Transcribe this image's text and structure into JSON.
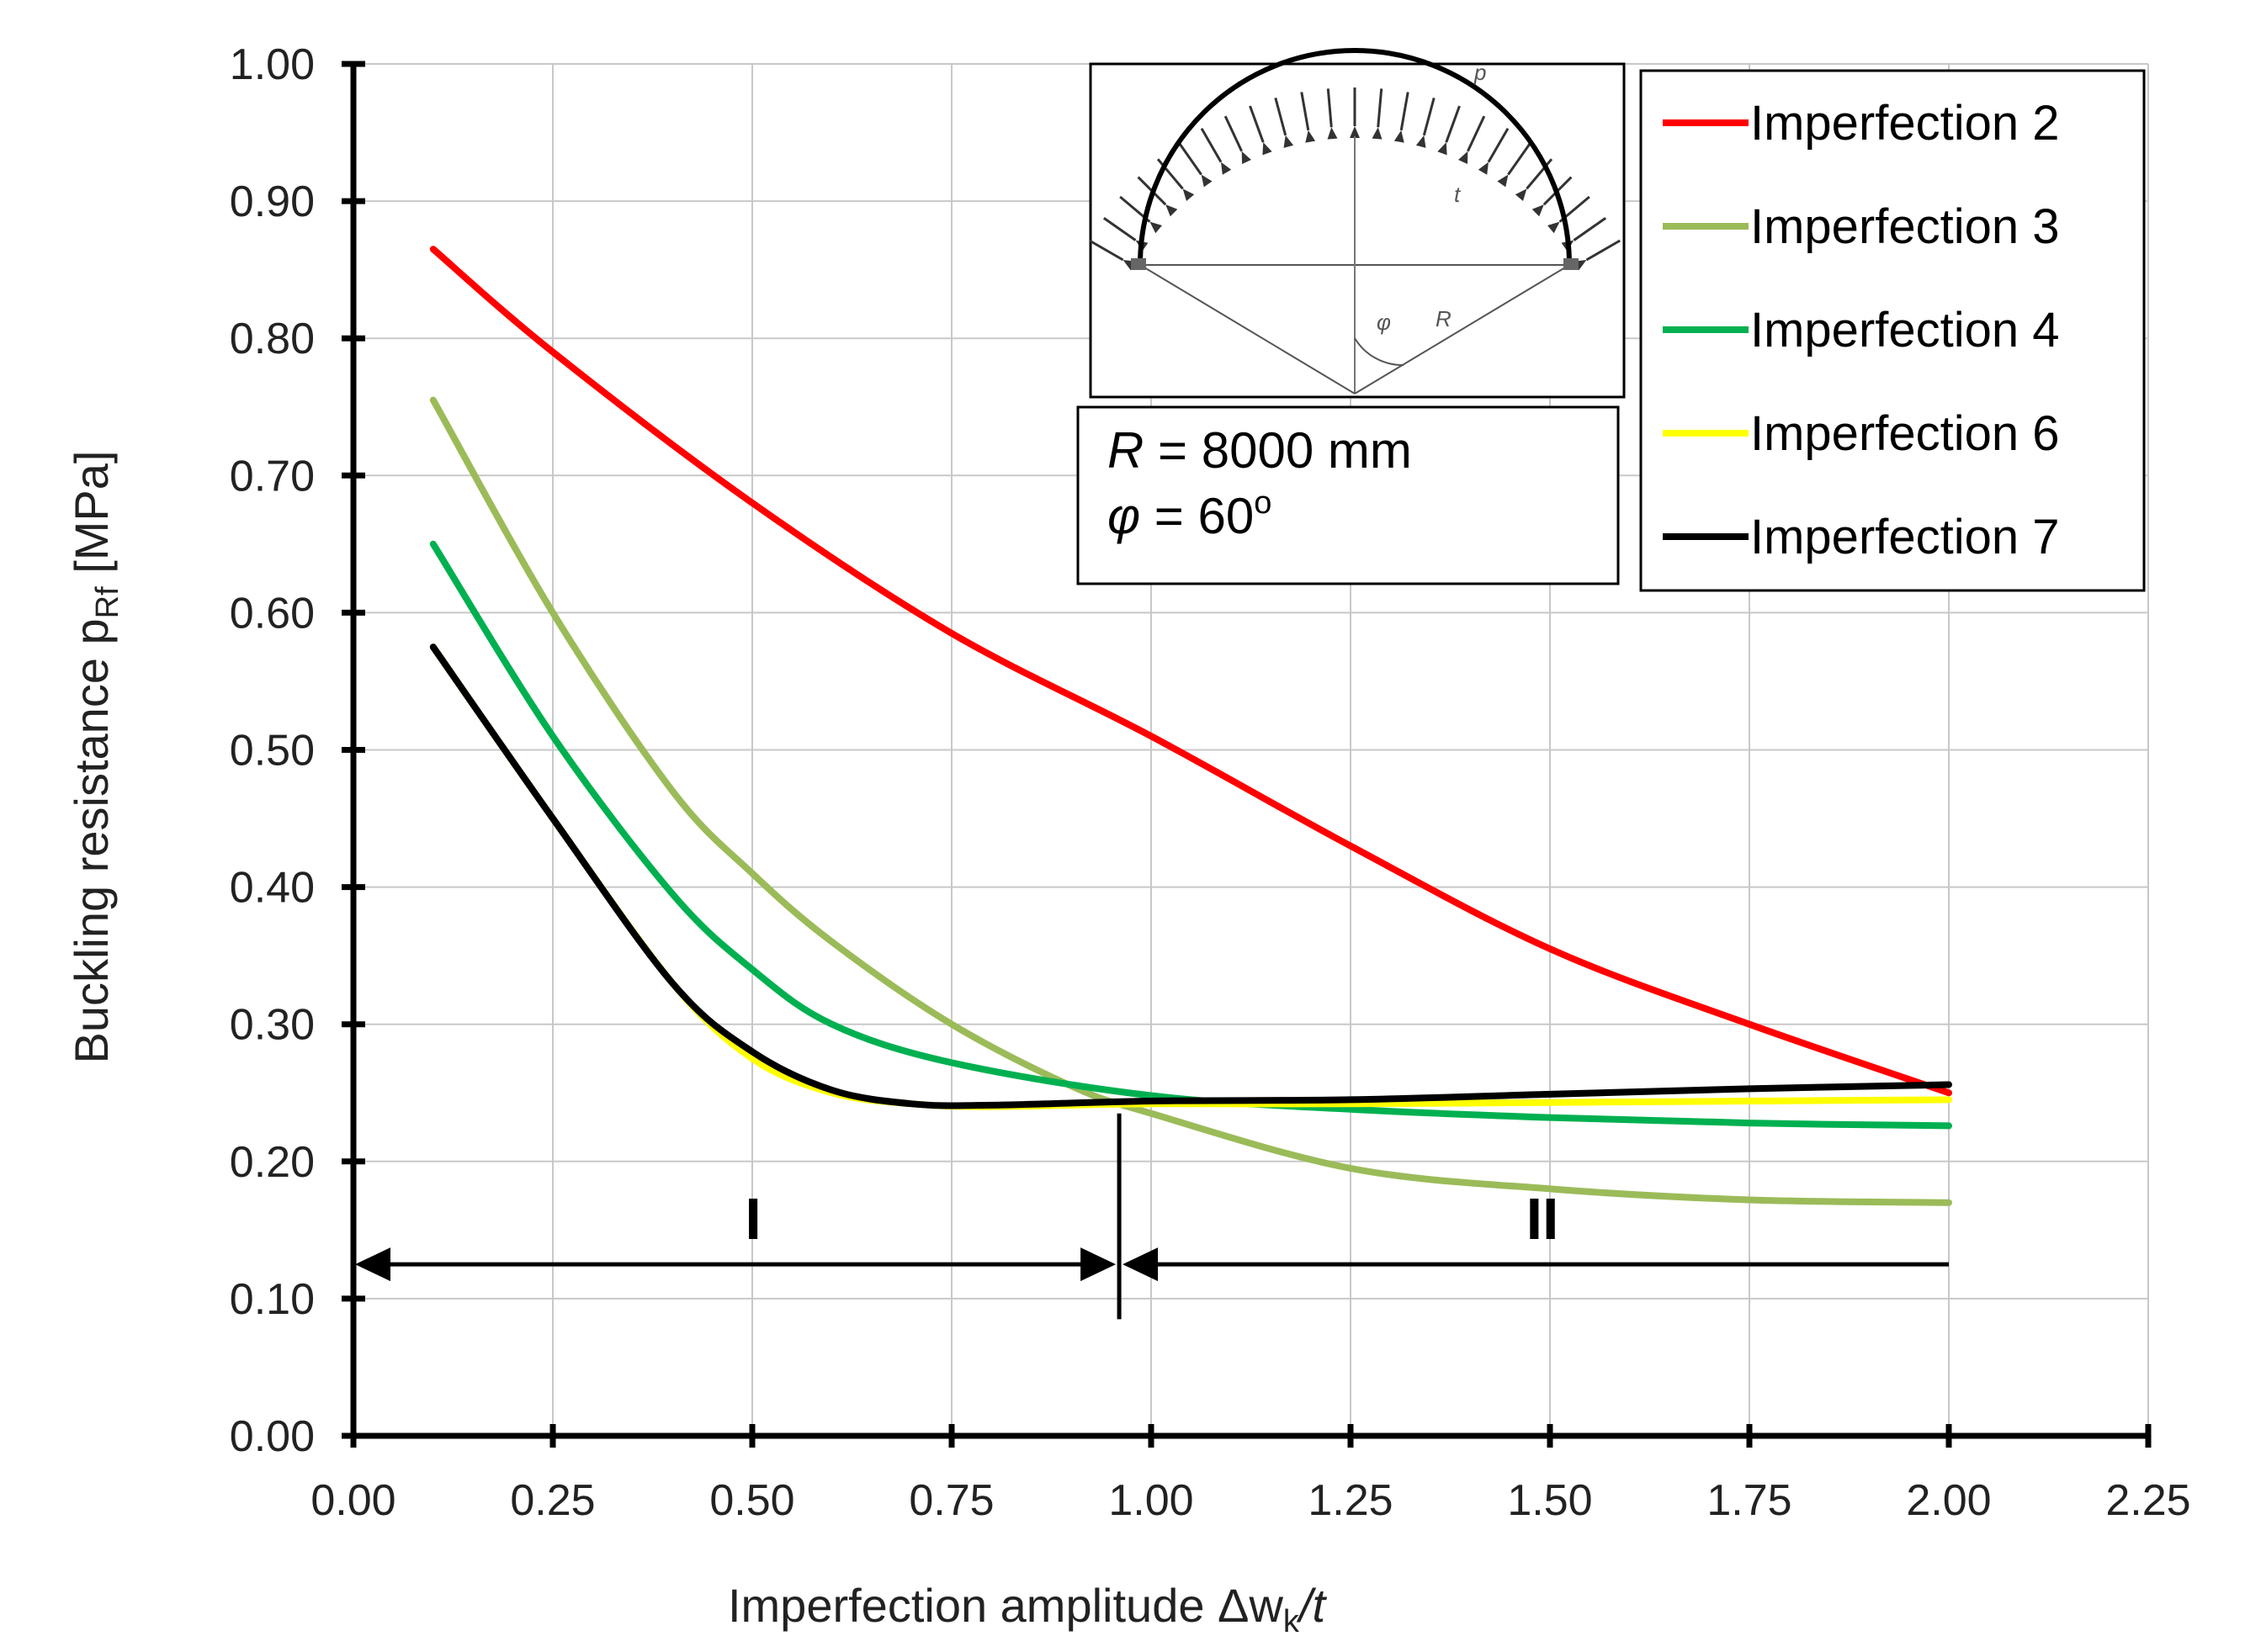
{
  "chart_data": {
    "type": "line",
    "title": "",
    "xlabel": "Imperfection amplitude  Δw",
    "xlabel_sub": "k",
    "xlabel_tail": "/t",
    "ylabel": "Buckling resistance  p",
    "ylabel_sub": "Rf",
    "ylabel_tail": " [MPa]",
    "xlim": [
      0,
      2.25
    ],
    "ylim": [
      0,
      1.0
    ],
    "x_ticks": [
      "0.00",
      "0.25",
      "0.50",
      "0.75",
      "1.00",
      "1.25",
      "1.50",
      "1.75",
      "2.00",
      "2.25"
    ],
    "y_ticks": [
      "0.00",
      "0.10",
      "0.20",
      "0.30",
      "0.40",
      "0.50",
      "0.60",
      "0.70",
      "0.80",
      "0.90",
      "1.00"
    ],
    "grid": true,
    "legend_position": "top-right",
    "series": [
      {
        "name": "Imperfection 2",
        "color": "#ff0000",
        "x": [
          0.1,
          0.25,
          0.5,
          0.75,
          1.0,
          1.25,
          1.5,
          1.75,
          2.0
        ],
        "y": [
          0.865,
          0.79,
          0.68,
          0.585,
          0.51,
          0.43,
          0.355,
          0.3,
          0.25
        ]
      },
      {
        "name": "Imperfection 3",
        "color": "#9bbb59",
        "x": [
          0.1,
          0.25,
          0.4,
          0.5,
          0.6,
          0.75,
          0.9,
          1.0,
          1.25,
          1.5,
          1.75,
          2.0
        ],
        "y": [
          0.755,
          0.6,
          0.47,
          0.41,
          0.36,
          0.3,
          0.255,
          0.235,
          0.195,
          0.18,
          0.172,
          0.17
        ]
      },
      {
        "name": "Imperfection 4",
        "color": "#00b050",
        "x": [
          0.1,
          0.25,
          0.4,
          0.5,
          0.6,
          0.75,
          1.0,
          1.25,
          1.5,
          1.75,
          2.0
        ],
        "y": [
          0.65,
          0.51,
          0.395,
          0.34,
          0.3,
          0.272,
          0.248,
          0.238,
          0.232,
          0.228,
          0.226
        ]
      },
      {
        "name": "Imperfection 6",
        "color": "#ffff00",
        "x": [
          0.1,
          0.25,
          0.4,
          0.5,
          0.6,
          0.7,
          0.8,
          1.0,
          1.25,
          1.5,
          1.75,
          2.0
        ],
        "y": [
          0.575,
          0.45,
          0.33,
          0.275,
          0.25,
          0.242,
          0.24,
          0.242,
          0.242,
          0.243,
          0.244,
          0.245
        ]
      },
      {
        "name": "Imperfection 7",
        "color": "#000000",
        "x": [
          0.1,
          0.25,
          0.4,
          0.5,
          0.6,
          0.7,
          0.8,
          1.0,
          1.25,
          1.5,
          1.75,
          2.0
        ],
        "y": [
          0.575,
          0.45,
          0.33,
          0.28,
          0.252,
          0.242,
          0.241,
          0.244,
          0.245,
          0.249,
          0.253,
          0.256
        ]
      }
    ],
    "annotations": {
      "zone_divider_x": 0.96,
      "zone_arrow_y": 0.125,
      "zone_start_x": 0.0,
      "zone_end_x": 2.0,
      "zone_I": "I",
      "zone_II": "II"
    },
    "parameters": {
      "R_label": "R",
      "R_value": " = 8000 mm",
      "phi_label": "φ",
      "phi_value": " = 60",
      "phi_unit": "o"
    },
    "inset_labels": {
      "load": "p",
      "thickness": "t",
      "angle": "φ",
      "radius": "R"
    }
  }
}
